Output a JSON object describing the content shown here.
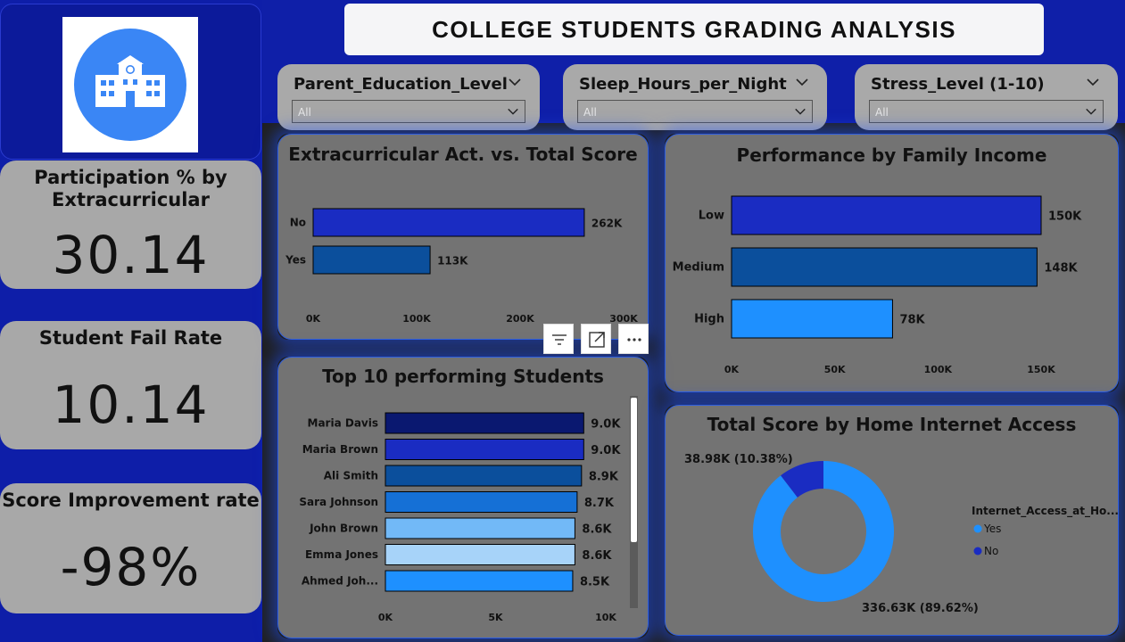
{
  "title": "COLLEGE STUDENTS GRADING ANALYSIS",
  "logo": {
    "icon": "school-building-icon",
    "bg_color": "#3a86f5"
  },
  "kpis": [
    {
      "title_line1": "Participation % by",
      "title_line2": "Extracurricular",
      "value": "30.14"
    },
    {
      "title_line1": "Student Fail Rate",
      "title_line2": "",
      "value": "10.14"
    },
    {
      "title_line1": "Score Improvement rate",
      "title_line2": "",
      "value": "-98%"
    }
  ],
  "slicers": [
    {
      "label": "Parent_Education_Level",
      "value": "All"
    },
    {
      "label": "Sleep_Hours_per_Night",
      "value": "All"
    },
    {
      "label": "Stress_Level (1-10)",
      "value": "All"
    }
  ],
  "visual_tools": {
    "filter_icon": "filter-icon",
    "focus_icon": "focus-mode-icon",
    "more_icon": "more-options-icon"
  },
  "chart_data": [
    {
      "id": "extracurricular",
      "type": "bar",
      "title": "Extracurricular Act. vs. Total Score",
      "categories": [
        "No",
        "Yes"
      ],
      "values": [
        262000,
        113000
      ],
      "labels": [
        "262K",
        "113K"
      ],
      "colors": [
        "#1a2cc2",
        "#0b4f9c"
      ],
      "xlim": [
        0,
        300000
      ],
      "ticks": [
        "0K",
        "100K",
        "200K",
        "300K"
      ]
    },
    {
      "id": "family_income",
      "type": "bar",
      "title": "Performance by Family Income",
      "categories": [
        "Low",
        "Medium",
        "High"
      ],
      "values": [
        150000,
        148000,
        78000
      ],
      "labels": [
        "150K",
        "148K",
        "78K"
      ],
      "colors": [
        "#1a2cc2",
        "#0b4f9c",
        "#1e90ff"
      ],
      "xlim": [
        0,
        150000
      ],
      "ticks": [
        "0K",
        "50K",
        "100K",
        "150K"
      ]
    },
    {
      "id": "top_students",
      "type": "bar",
      "title": "Top 10 performing Students",
      "categories": [
        "Maria Davis",
        "Maria Brown",
        "Ali Smith",
        "Sara Johnson",
        "John Brown",
        "Emma Jones",
        "Ahmed Joh..."
      ],
      "values": [
        9000,
        9000,
        8900,
        8700,
        8600,
        8600,
        8500
      ],
      "labels": [
        "9.0K",
        "9.0K",
        "8.9K",
        "8.7K",
        "8.6K",
        "8.6K",
        "8.5K"
      ],
      "colors": [
        "#0a1870",
        "#1a2cc2",
        "#0b4f9c",
        "#1570d6",
        "#72b9f7",
        "#a7d3f9",
        "#1e90ff"
      ],
      "xlim": [
        0,
        10000
      ],
      "ticks": [
        "0K",
        "5K",
        "10K"
      ]
    },
    {
      "id": "internet_access",
      "type": "pie",
      "title": "Total Score by Home Internet Access",
      "legend_title": "Internet_Access_at_Ho...",
      "slices": [
        {
          "name": "Yes",
          "value": 336630,
          "percent": 89.62,
          "label": "336.63K (89.62%)",
          "color": "#1e90ff"
        },
        {
          "name": "No",
          "value": 38980,
          "percent": 10.38,
          "label": "38.98K (10.38%)",
          "color": "#1a2cc2"
        }
      ]
    }
  ]
}
